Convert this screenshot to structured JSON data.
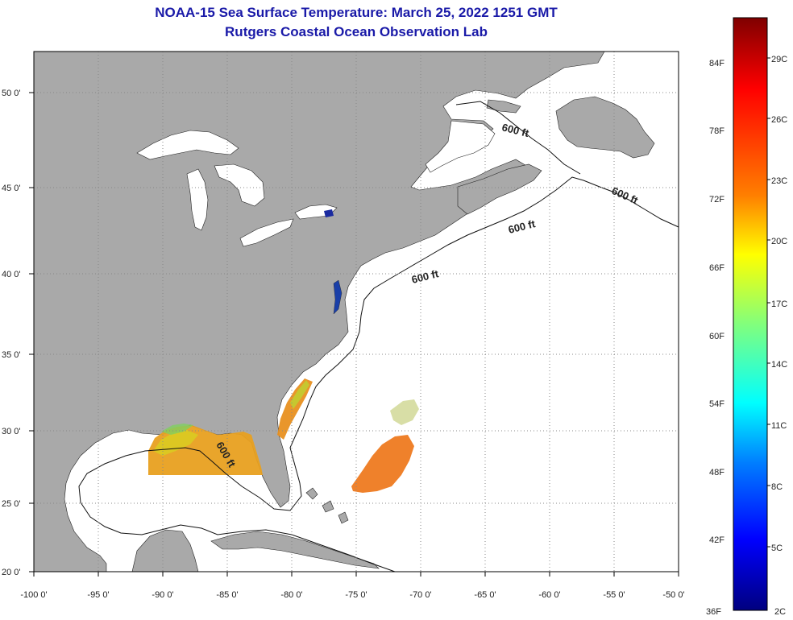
{
  "title": {
    "line1": "NOAA-15 Sea Surface Temperature:  March 25, 2022 1251 GMT",
    "line2": "Rutgers Coastal Ocean Observation Lab"
  },
  "map": {
    "lon_range": [
      -100,
      -50
    ],
    "lat_range": [
      20,
      52.5
    ],
    "lon_ticks": [
      "-100 0'",
      "-95 0'",
      "-90 0'",
      "-85 0'",
      "-80 0'",
      "-75 0'",
      "-70 0'",
      "-65 0'",
      "-60 0'",
      "-55 0'",
      "-50 0'"
    ],
    "lat_ticks": [
      "20 0'",
      "25 0'",
      "30 0'",
      "35 0'",
      "40 0'",
      "45 0'",
      "50 0'"
    ],
    "grid": "dotted",
    "contour_label": "600 ft",
    "colors": {
      "land": "#a9a9a9",
      "water": "#ffffff",
      "grid": "#888888",
      "frame": "#000000"
    }
  },
  "colorbar": {
    "fahrenheit_labels": [
      "84F",
      "78F",
      "72F",
      "66F",
      "60F",
      "54F",
      "48F",
      "42F",
      "36F"
    ],
    "celsius_labels": [
      "29C",
      "26C",
      "23C",
      "20C",
      "17C",
      "14C",
      "11C",
      "8C",
      "5C",
      "2C"
    ],
    "colors_top_to_bottom": [
      "#7f0000",
      "#ff0000",
      "#ff7f00",
      "#ffff00",
      "#7fff7f",
      "#00ffff",
      "#007fff",
      "#0000ff",
      "#00007f"
    ]
  }
}
